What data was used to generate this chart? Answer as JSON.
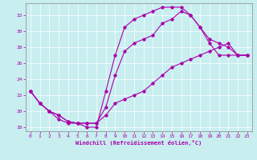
{
  "xlabel": "Windchill (Refroidissement éolien,°C)",
  "bg_color": "#c8eef0",
  "line_color": "#aa00aa",
  "xlim": [
    -0.5,
    23.5
  ],
  "ylim": [
    17.5,
    33.5
  ],
  "yticks": [
    18,
    20,
    22,
    24,
    26,
    28,
    30,
    32
  ],
  "xticks": [
    0,
    1,
    2,
    3,
    4,
    5,
    6,
    7,
    8,
    9,
    10,
    11,
    12,
    13,
    14,
    15,
    16,
    17,
    18,
    19,
    20,
    21,
    22,
    23
  ],
  "line1_x": [
    0,
    1,
    2,
    3,
    4,
    5,
    6,
    7,
    8,
    9,
    10,
    11,
    12,
    13,
    14,
    15,
    16,
    17,
    18,
    19,
    20,
    21,
    22,
    23
  ],
  "line1_y": [
    22.5,
    21.0,
    20.0,
    19.0,
    18.5,
    18.5,
    18.0,
    18.0,
    22.5,
    27.0,
    30.5,
    31.5,
    32.0,
    32.5,
    33.0,
    33.0,
    33.0,
    32.0,
    30.5,
    28.5,
    27.0,
    27.0,
    27.0,
    27.0
  ],
  "line2_x": [
    0,
    1,
    2,
    3,
    4,
    5,
    6,
    7,
    8,
    9,
    10,
    11,
    12,
    13,
    14,
    15,
    16,
    17,
    18,
    19,
    20,
    21,
    22,
    23
  ],
  "line2_y": [
    22.5,
    21.0,
    20.0,
    19.5,
    18.7,
    18.5,
    18.5,
    18.5,
    20.5,
    24.5,
    27.5,
    28.5,
    29.0,
    29.5,
    31.0,
    31.5,
    32.5,
    32.0,
    30.5,
    29.0,
    28.5,
    28.0,
    27.0,
    27.0
  ],
  "line3_x": [
    0,
    1,
    2,
    3,
    4,
    5,
    6,
    7,
    8,
    9,
    10,
    11,
    12,
    13,
    14,
    15,
    16,
    17,
    18,
    19,
    20,
    21,
    22,
    23
  ],
  "line3_y": [
    22.5,
    21.0,
    20.0,
    19.5,
    18.7,
    18.5,
    18.5,
    18.5,
    19.5,
    21.0,
    21.5,
    22.0,
    22.5,
    23.5,
    24.5,
    25.5,
    26.0,
    26.5,
    27.0,
    27.5,
    28.0,
    28.5,
    27.0,
    27.0
  ]
}
